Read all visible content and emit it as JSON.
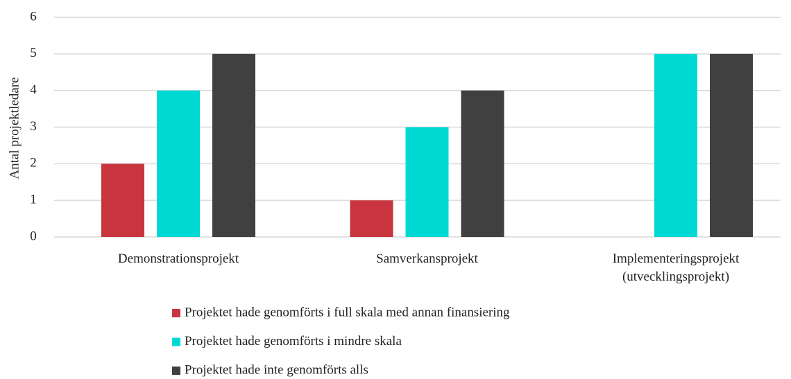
{
  "chart_data": {
    "type": "bar",
    "y_label": "Antal projektledare",
    "categories": [
      "Demonstrationsprojekt",
      "Samverkansprojekt",
      "Implementeringsprojekt\n(utvecklingsprojekt)"
    ],
    "series": [
      {
        "name": "Projektet hade genomförts i full skala med annan finansiering",
        "color": "#c8353f",
        "values": [
          2,
          1,
          0
        ]
      },
      {
        "name": "Projektet hade genomförts i mindre skala",
        "color": "#00d9d3",
        "values": [
          4,
          3,
          5
        ]
      },
      {
        "name": "Projektet hade inte genomförts alls",
        "color": "#404040",
        "values": [
          5,
          4,
          5
        ]
      }
    ],
    "ylim": [
      0,
      6
    ],
    "yticks": [
      0,
      1,
      2,
      3,
      4,
      5,
      6
    ],
    "grid": true,
    "legend": "bottom"
  }
}
